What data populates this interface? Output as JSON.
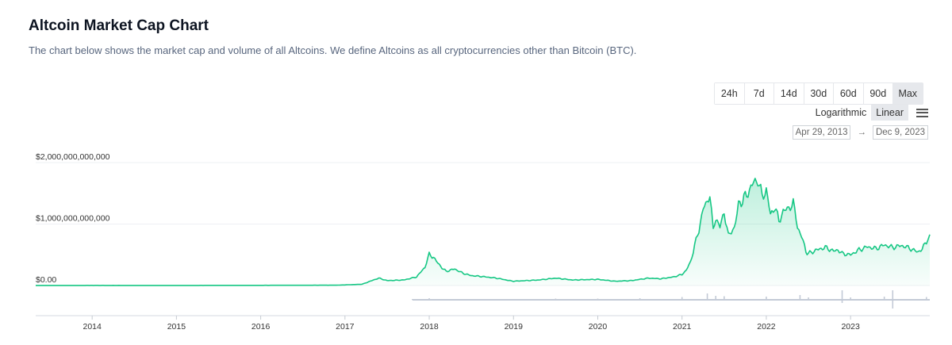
{
  "header": {
    "title": "Altcoin Market Cap Chart",
    "subtitle": "The chart below shows the market cap and volume of all Altcoins. We define Altcoins as all cryptocurrencies other than Bitcoin (BTC)."
  },
  "controls": {
    "ranges": [
      "24h",
      "7d",
      "14d",
      "30d",
      "60d",
      "90d",
      "Max"
    ],
    "active_range": "Max",
    "scales": [
      "Logarithmic",
      "Linear"
    ],
    "active_scale": "Linear",
    "date_from": "Apr 29, 2013",
    "date_arrow": "→",
    "date_to": "Dec 9, 2023"
  },
  "colors": {
    "line": "#16c784",
    "volume": "#c3cad6",
    "grid": "#eef0f3"
  },
  "chart_data": {
    "type": "area",
    "title": "Altcoin Market Cap Chart",
    "series": [
      {
        "name": "Altcoin Market Cap (USD)",
        "x": [
          2013.33,
          2014.0,
          2015.0,
          2016.0,
          2016.9,
          2017.2,
          2017.4,
          2017.5,
          2017.7,
          2017.85,
          2017.95,
          2018.0,
          2018.05,
          2018.12,
          2018.2,
          2018.3,
          2018.4,
          2018.5,
          2018.6,
          2018.8,
          2018.95,
          2019.0,
          2019.3,
          2019.5,
          2019.7,
          2020.0,
          2020.2,
          2020.4,
          2020.6,
          2020.75,
          2020.9,
          2021.0,
          2021.05,
          2021.1,
          2021.15,
          2021.2,
          2021.25,
          2021.33,
          2021.37,
          2021.4,
          2021.45,
          2021.5,
          2021.55,
          2021.62,
          2021.67,
          2021.75,
          2021.8,
          2021.85,
          2021.9,
          2021.95,
          2022.0,
          2022.05,
          2022.1,
          2022.15,
          2022.2,
          2022.25,
          2022.32,
          2022.37,
          2022.42,
          2022.47,
          2022.5,
          2022.6,
          2022.7,
          2022.8,
          2022.85,
          2022.9,
          2023.0,
          2023.1,
          2023.2,
          2023.3,
          2023.4,
          2023.5,
          2023.6,
          2023.7,
          2023.75,
          2023.8,
          2023.85,
          2023.9,
          2023.94
        ],
        "values": [
          1000000000.0,
          2000000000.0,
          1500000000.0,
          3000000000.0,
          5000000000.0,
          20000000000.0,
          120000000000.0,
          80000000000.0,
          90000000000.0,
          140000000000.0,
          300000000000.0,
          510000000000.0,
          460000000000.0,
          330000000000.0,
          230000000000.0,
          270000000000.0,
          200000000000.0,
          160000000000.0,
          150000000000.0,
          120000000000.0,
          80000000000.0,
          70000000000.0,
          90000000000.0,
          120000000000.0,
          90000000000.0,
          100000000000.0,
          70000000000.0,
          80000000000.0,
          120000000000.0,
          110000000000.0,
          140000000000.0,
          180000000000.0,
          250000000000.0,
          380000000000.0,
          650000000000.0,
          900000000000.0,
          1250000000000.0,
          1450000000000.0,
          900000000000.0,
          1100000000000.0,
          950000000000.0,
          1200000000000.0,
          800000000000.0,
          950000000000.0,
          1300000000000.0,
          1450000000000.0,
          1550000000000.0,
          1680000000000.0,
          1720000000000.0,
          1450000000000.0,
          1550000000000.0,
          1150000000000.0,
          1280000000000.0,
          1050000000000.0,
          1200000000000.0,
          1250000000000.0,
          1350000000000.0,
          950000000000.0,
          800000000000.0,
          550000000000.0,
          520000000000.0,
          580000000000.0,
          620000000000.0,
          560000000000.0,
          580000000000.0,
          520000000000.0,
          500000000000.0,
          580000000000.0,
          630000000000.0,
          600000000000.0,
          660000000000.0,
          620000000000.0,
          650000000000.0,
          610000000000.0,
          570000000000.0,
          550000000000.0,
          590000000000.0,
          720000000000.0,
          830000000000.0
        ]
      }
    ],
    "ylim": [
      0,
      2000000000000
    ],
    "yticks": [
      {
        "value": 0,
        "label": "$0.00"
      },
      {
        "value": 1000000000000,
        "label": "$1,000,000,000,000"
      },
      {
        "value": 2000000000000,
        "label": "$2,000,000,000,000"
      }
    ],
    "xlim": [
      2013.33,
      2023.94
    ],
    "xticks": [
      {
        "value": 2014,
        "label": "2014"
      },
      {
        "value": 2015,
        "label": "2015"
      },
      {
        "value": 2016,
        "label": "2016"
      },
      {
        "value": 2017,
        "label": "2017"
      },
      {
        "value": 2018,
        "label": "2018"
      },
      {
        "value": 2019,
        "label": "2019"
      },
      {
        "value": 2020,
        "label": "2020"
      },
      {
        "value": 2021,
        "label": "2021"
      },
      {
        "value": 2022,
        "label": "2022"
      },
      {
        "value": 2023,
        "label": "2023"
      }
    ],
    "volume": {
      "name": "Volume",
      "x": [
        2017.8,
        2018.0,
        2018.5,
        2019.0,
        2019.5,
        2020.0,
        2020.5,
        2021.0,
        2021.3,
        2021.4,
        2021.5,
        2022.0,
        2022.4,
        2022.5,
        2022.9,
        2023.0,
        2023.4,
        2023.5,
        2023.9
      ],
      "relative": [
        0.1,
        0.2,
        0.1,
        0.1,
        0.15,
        0.15,
        0.2,
        0.35,
        0.8,
        0.5,
        0.45,
        0.4,
        0.6,
        0.3,
        1.6,
        0.3,
        0.4,
        2.3,
        0.35
      ]
    },
    "grid": true,
    "legend": "none"
  }
}
